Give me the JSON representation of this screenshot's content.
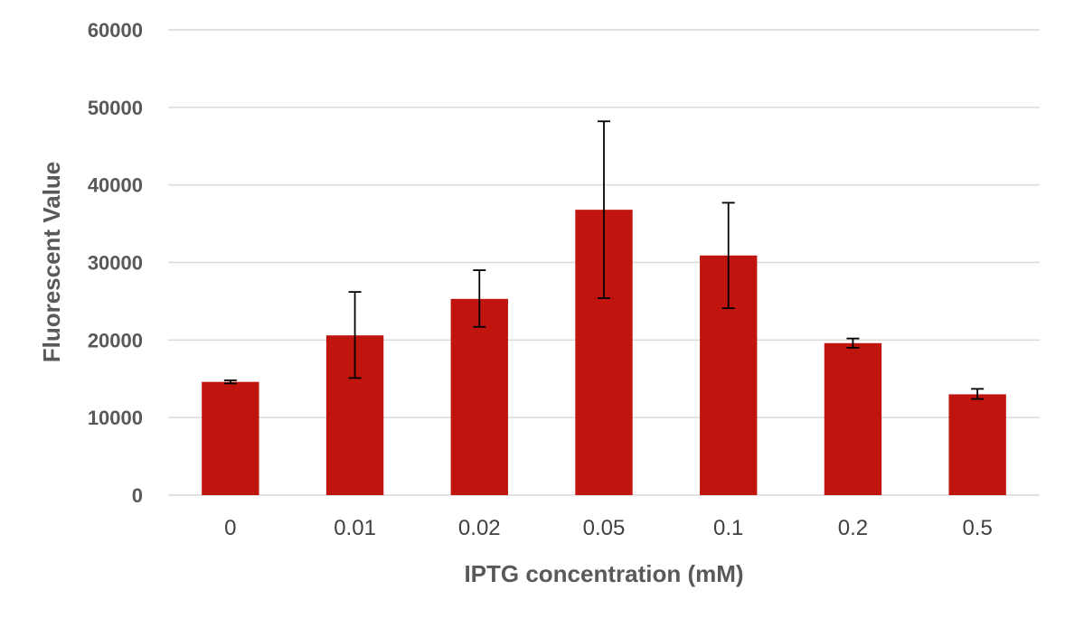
{
  "chart_data": {
    "type": "bar",
    "title": "",
    "xlabel": "IPTG concentration (mM)",
    "ylabel": "Fluorescent Value",
    "ylim": [
      0,
      60000
    ],
    "yticks": [
      0,
      10000,
      20000,
      30000,
      40000,
      50000,
      60000
    ],
    "ytick_labels": [
      "0",
      "10000",
      "20000",
      "30000",
      "40000",
      "50000",
      "60000"
    ],
    "grid": true,
    "legend": "none",
    "bar_color": "#c0150f",
    "categories": [
      "0",
      "0.01",
      "0.02",
      "0.05",
      "0.1",
      "0.2",
      "0.5"
    ],
    "series": [
      {
        "name": "Fluorescent Value",
        "values": [
          14600,
          20600,
          25300,
          36800,
          30900,
          19600,
          13000
        ],
        "error_low": [
          14400,
          15100,
          21700,
          25400,
          24100,
          19000,
          12400
        ],
        "error_high": [
          14800,
          26200,
          29000,
          48200,
          37700,
          20200,
          13700
        ]
      }
    ]
  }
}
